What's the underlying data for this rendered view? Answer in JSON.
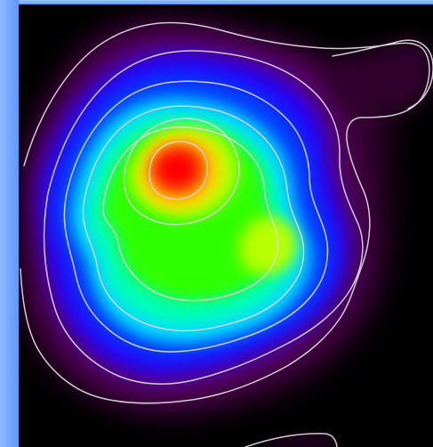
{
  "colors": {
    "background": "#000000",
    "frame_light": "#8fb9ff",
    "frame_mid": "#5d98f8",
    "frame_top": "#9ec5ff",
    "contour": "#d8d8d8",
    "outer_halo": "#33002f",
    "violet": "#65006d",
    "indigo": "#2000ff",
    "blue": "#0046ff",
    "cyan": "#00d9ff",
    "aqua": "#00ffb5",
    "green": "#2dff00",
    "lime": "#b8ff00",
    "yellow": "#ffd600",
    "orange": "#ff6f00",
    "red": "#ff0000"
  },
  "heatmap": {
    "palette_order": [
      "outer_halo",
      "violet",
      "indigo",
      "blue",
      "cyan",
      "aqua",
      "green",
      "lime",
      "yellow",
      "orange",
      "red"
    ]
  }
}
